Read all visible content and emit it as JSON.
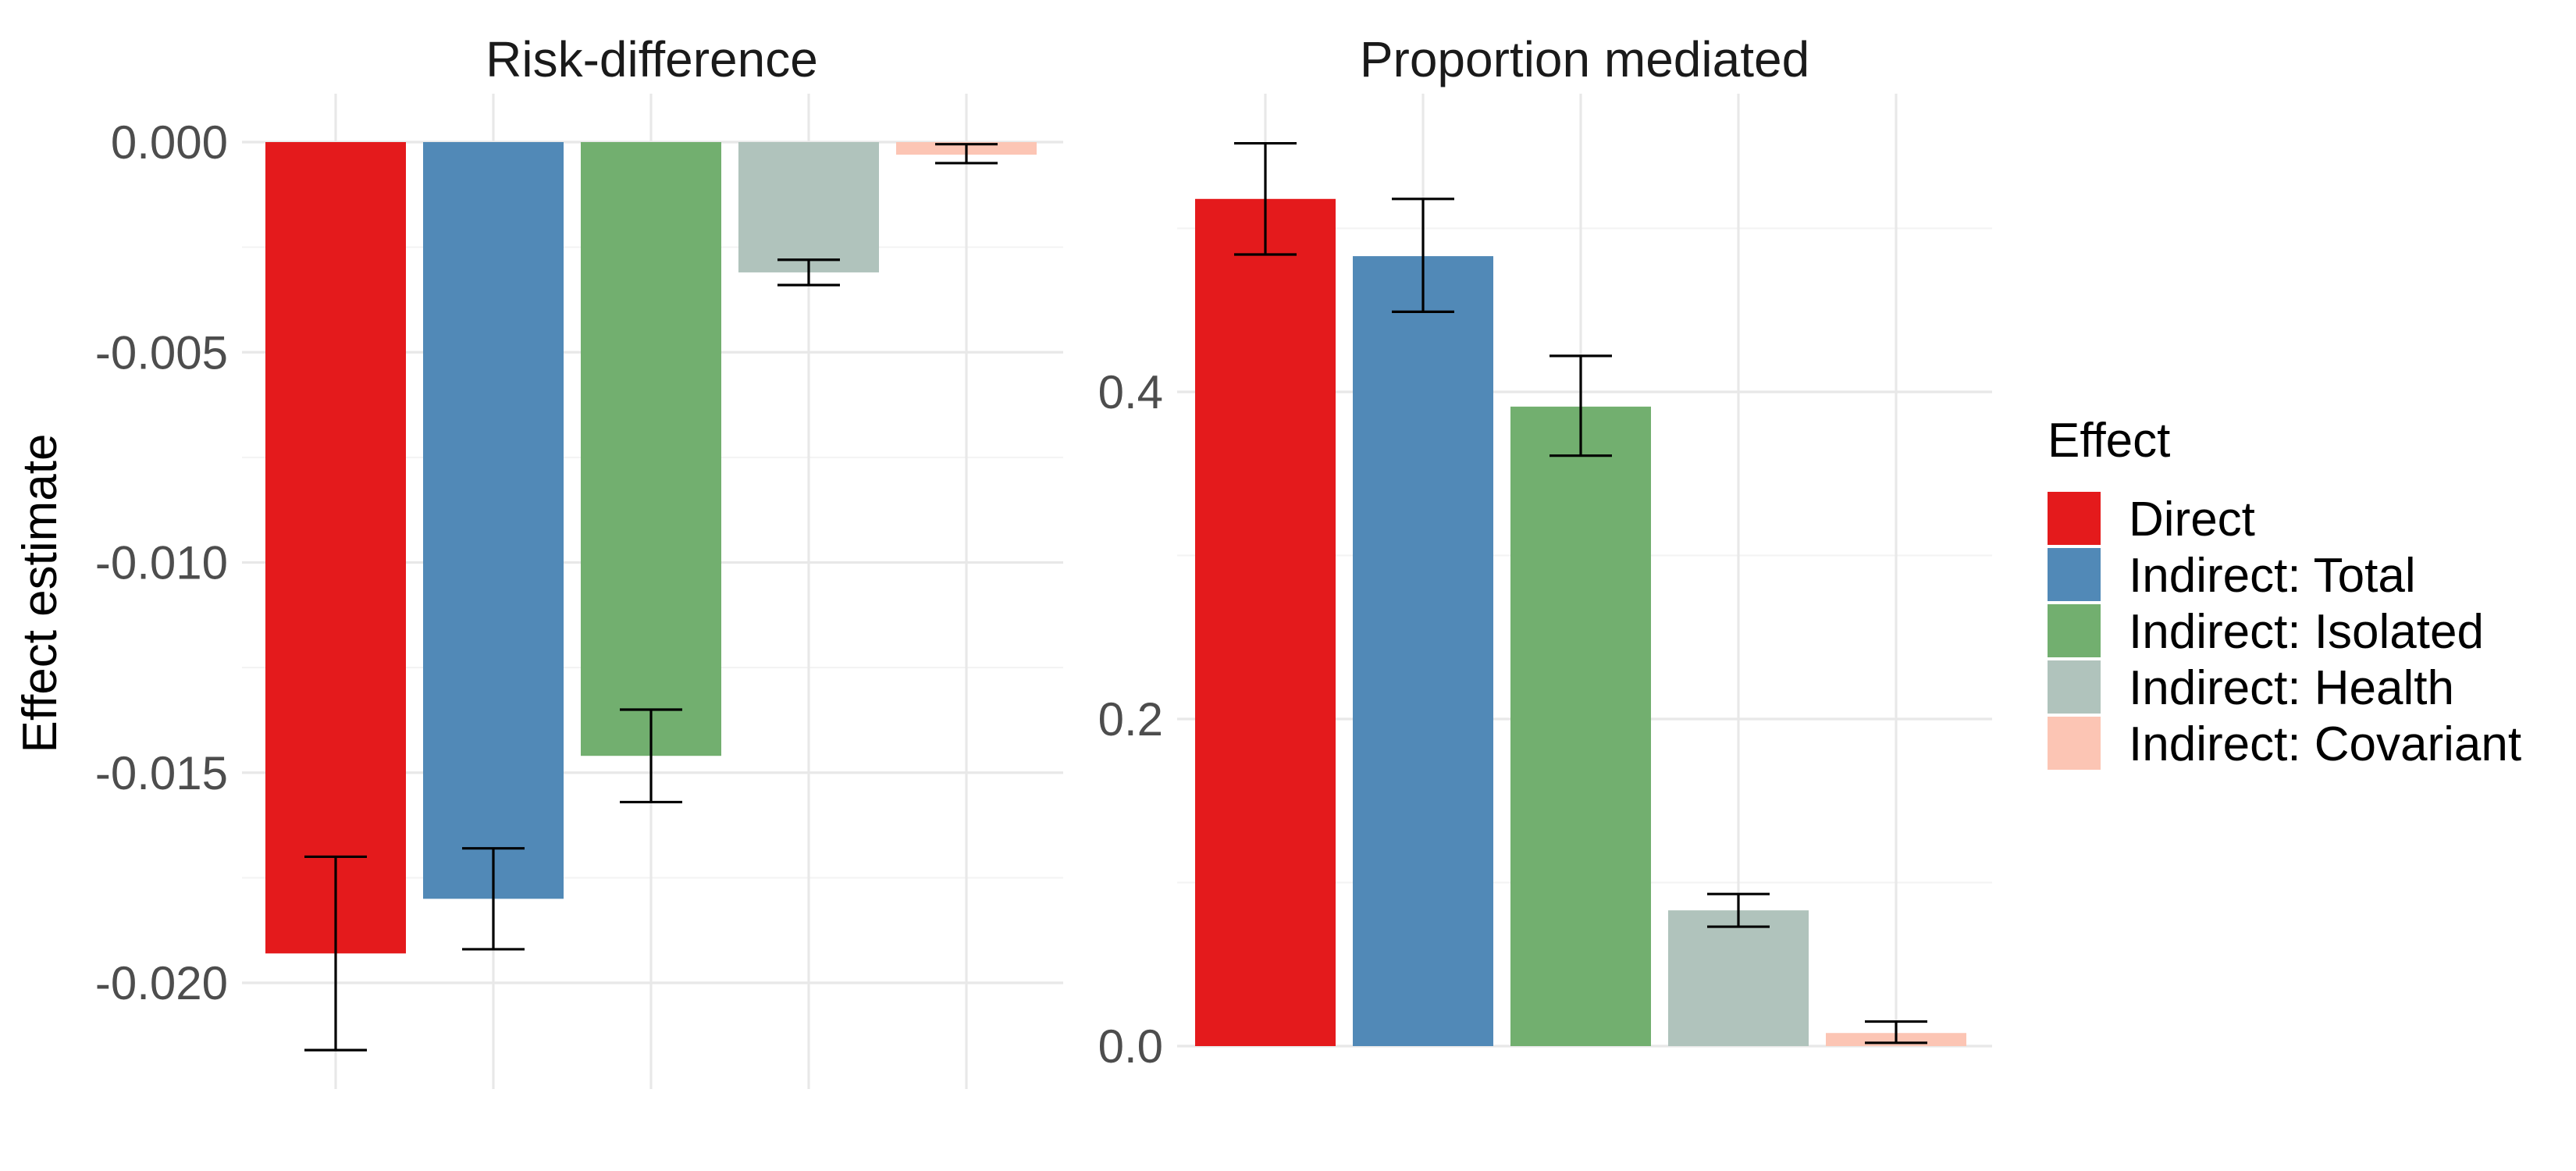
{
  "legend": {
    "title": "Effect",
    "placement": "right",
    "entries": [
      {
        "label": "Direct",
        "color": "#E41A1C"
      },
      {
        "label": "Indirect: Total",
        "color": "#5189B7"
      },
      {
        "label": "Indirect: Isolated",
        "color": "#72AF6F"
      },
      {
        "label": "Indirect: Health",
        "color": "#B0C3BC"
      },
      {
        "label": "Indirect: Covariant",
        "color": "#FCC5B4"
      }
    ]
  },
  "y_axis_title": "Effect estimate",
  "chart_data": [
    {
      "type": "bar",
      "title": "Risk-difference",
      "ylabel": "Effect estimate",
      "xlabel": "",
      "categories": [
        "Direct",
        "Indirect: Total",
        "Indirect: Isolated",
        "Indirect: Health",
        "Indirect: Covariant"
      ],
      "values": [
        -0.0193,
        -0.018,
        -0.0146,
        -0.0031,
        -0.0003
      ],
      "ci_lower": [
        -0.0216,
        -0.0192,
        -0.0157,
        -0.0034,
        -0.0005
      ],
      "ci_upper": [
        -0.017,
        -0.0168,
        -0.0135,
        -0.0028,
        -5e-05
      ],
      "yticks": [
        0.0,
        -0.005,
        -0.01,
        -0.015,
        -0.02
      ],
      "ytick_labels": [
        "0.000",
        "-0.005",
        "-0.010",
        "-0.015",
        "-0.020"
      ],
      "ylim": [
        -0.0225,
        0.0011
      ],
      "grid": true
    },
    {
      "type": "bar",
      "title": "Proportion mediated",
      "ylabel": "",
      "xlabel": "",
      "categories": [
        "Direct",
        "Indirect: Total",
        "Indirect: Isolated",
        "Indirect: Health",
        "Indirect: Covariant"
      ],
      "values": [
        0.518,
        0.483,
        0.391,
        0.083,
        0.008
      ],
      "ci_lower": [
        0.484,
        0.449,
        0.361,
        0.073,
        0.002
      ],
      "ci_upper": [
        0.552,
        0.518,
        0.422,
        0.093,
        0.015
      ],
      "yticks": [
        0.0,
        0.2,
        0.4
      ],
      "ytick_labels": [
        "0.0",
        "0.2",
        "0.4"
      ],
      "ylim": [
        0,
        0.58
      ],
      "grid": true
    }
  ]
}
